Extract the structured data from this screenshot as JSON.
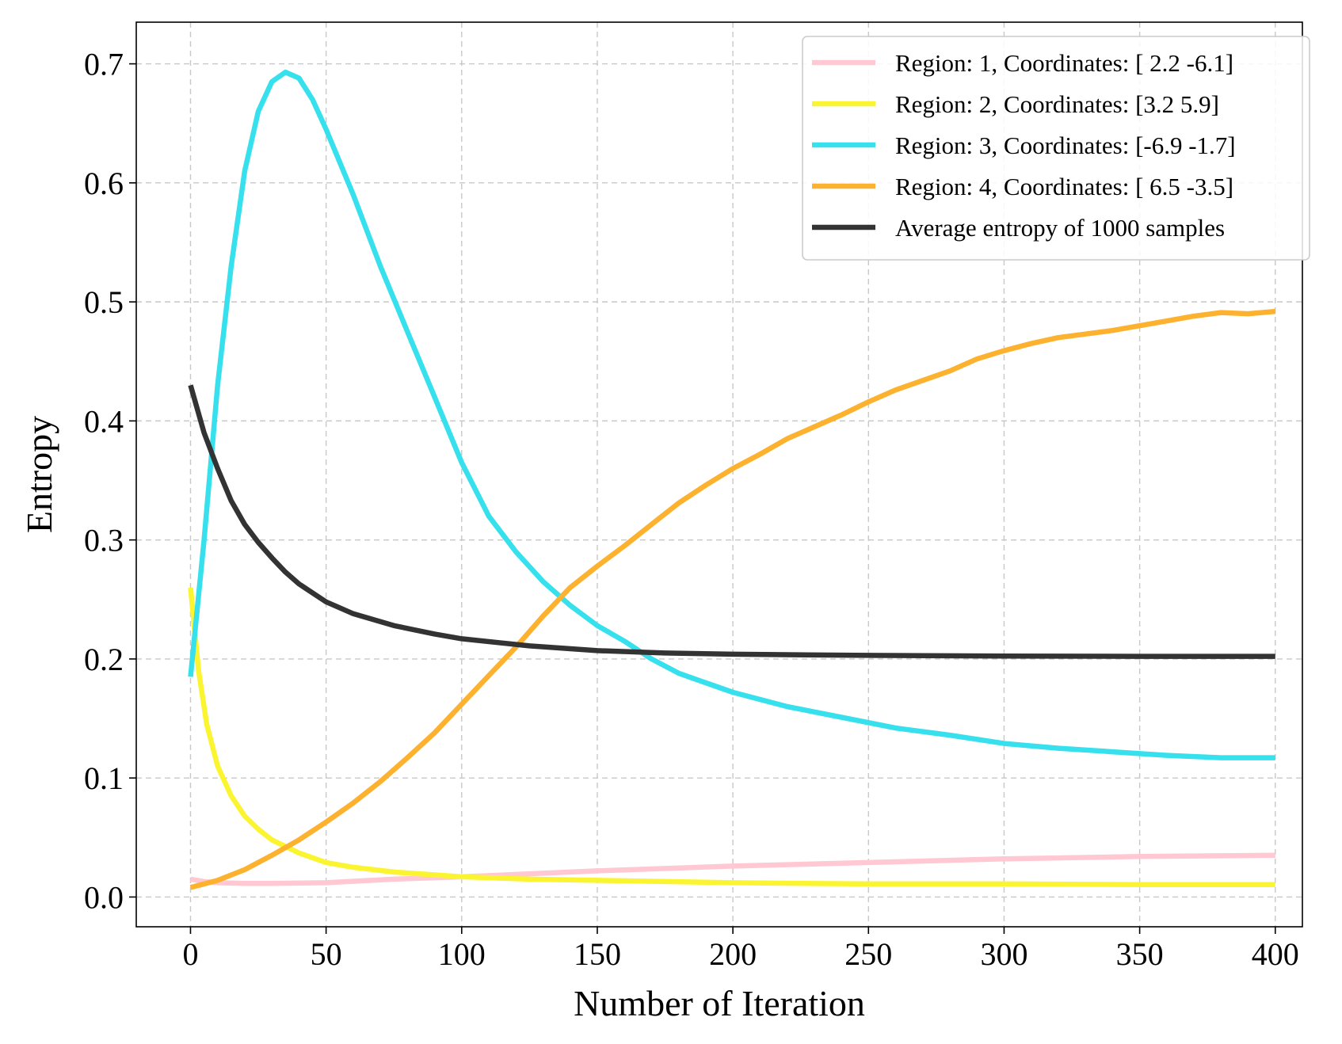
{
  "chart_data": {
    "type": "line",
    "title": "",
    "xlabel": "Number of Iteration",
    "ylabel": "Entropy",
    "xlim": [
      -20,
      410
    ],
    "ylim": [
      -0.025,
      0.735
    ],
    "xticks": [
      0,
      50,
      100,
      150,
      200,
      250,
      300,
      350,
      400
    ],
    "yticks": [
      0.0,
      0.1,
      0.2,
      0.3,
      0.4,
      0.5,
      0.6,
      0.7
    ],
    "xtick_labels": [
      "0",
      "50",
      "100",
      "150",
      "200",
      "250",
      "300",
      "350",
      "400"
    ],
    "ytick_labels": [
      "0.0",
      "0.1",
      "0.2",
      "0.3",
      "0.4",
      "0.5",
      "0.6",
      "0.7"
    ],
    "grid": true,
    "legend_position": "top-right",
    "series": [
      {
        "name": "Region: 1, Coordinates: [ 2.2 -6.1]",
        "color": "#ffc8d2",
        "points": [
          [
            0,
            0.015
          ],
          [
            5,
            0.013
          ],
          [
            10,
            0.012
          ],
          [
            20,
            0.0115
          ],
          [
            30,
            0.0115
          ],
          [
            50,
            0.012
          ],
          [
            75,
            0.015
          ],
          [
            100,
            0.017
          ],
          [
            150,
            0.022
          ],
          [
            200,
            0.026
          ],
          [
            250,
            0.029
          ],
          [
            300,
            0.032
          ],
          [
            350,
            0.034
          ],
          [
            400,
            0.035
          ]
        ]
      },
      {
        "name": "Region: 2, Coordinates: [3.2 5.9]",
        "color": "#fbf531",
        "points": [
          [
            0,
            0.26
          ],
          [
            3,
            0.19
          ],
          [
            6,
            0.145
          ],
          [
            10,
            0.11
          ],
          [
            15,
            0.085
          ],
          [
            20,
            0.068
          ],
          [
            25,
            0.057
          ],
          [
            30,
            0.048
          ],
          [
            40,
            0.037
          ],
          [
            50,
            0.029
          ],
          [
            60,
            0.025
          ],
          [
            75,
            0.021
          ],
          [
            100,
            0.017
          ],
          [
            125,
            0.015
          ],
          [
            150,
            0.014
          ],
          [
            200,
            0.012
          ],
          [
            250,
            0.011
          ],
          [
            300,
            0.011
          ],
          [
            350,
            0.0105
          ],
          [
            400,
            0.0105
          ]
        ]
      },
      {
        "name": "Region: 3, Coordinates: [-6.9 -1.7]",
        "color": "#36e0ec",
        "points": [
          [
            0,
            0.185
          ],
          [
            5,
            0.3
          ],
          [
            10,
            0.43
          ],
          [
            15,
            0.53
          ],
          [
            20,
            0.61
          ],
          [
            25,
            0.66
          ],
          [
            30,
            0.685
          ],
          [
            35,
            0.693
          ],
          [
            40,
            0.688
          ],
          [
            45,
            0.67
          ],
          [
            50,
            0.645
          ],
          [
            60,
            0.59
          ],
          [
            70,
            0.53
          ],
          [
            80,
            0.475
          ],
          [
            90,
            0.42
          ],
          [
            100,
            0.365
          ],
          [
            110,
            0.32
          ],
          [
            120,
            0.29
          ],
          [
            130,
            0.265
          ],
          [
            140,
            0.245
          ],
          [
            150,
            0.228
          ],
          [
            160,
            0.215
          ],
          [
            170,
            0.2
          ],
          [
            180,
            0.188
          ],
          [
            190,
            0.18
          ],
          [
            200,
            0.172
          ],
          [
            220,
            0.16
          ],
          [
            240,
            0.151
          ],
          [
            260,
            0.142
          ],
          [
            280,
            0.136
          ],
          [
            300,
            0.129
          ],
          [
            320,
            0.125
          ],
          [
            340,
            0.122
          ],
          [
            360,
            0.119
          ],
          [
            380,
            0.117
          ],
          [
            400,
            0.117
          ]
        ]
      },
      {
        "name": "Region: 4, Coordinates: [ 6.5 -3.5]",
        "color": "#fdb22f",
        "points": [
          [
            0,
            0.008
          ],
          [
            10,
            0.014
          ],
          [
            20,
            0.023
          ],
          [
            30,
            0.035
          ],
          [
            40,
            0.048
          ],
          [
            50,
            0.063
          ],
          [
            60,
            0.079
          ],
          [
            70,
            0.097
          ],
          [
            80,
            0.117
          ],
          [
            90,
            0.138
          ],
          [
            100,
            0.162
          ],
          [
            110,
            0.186
          ],
          [
            120,
            0.21
          ],
          [
            130,
            0.236
          ],
          [
            140,
            0.26
          ],
          [
            150,
            0.278
          ],
          [
            160,
            0.295
          ],
          [
            170,
            0.313
          ],
          [
            180,
            0.331
          ],
          [
            190,
            0.346
          ],
          [
            200,
            0.36
          ],
          [
            210,
            0.372
          ],
          [
            220,
            0.385
          ],
          [
            230,
            0.395
          ],
          [
            240,
            0.405
          ],
          [
            250,
            0.416
          ],
          [
            260,
            0.426
          ],
          [
            270,
            0.434
          ],
          [
            280,
            0.442
          ],
          [
            290,
            0.452
          ],
          [
            300,
            0.459
          ],
          [
            310,
            0.465
          ],
          [
            320,
            0.47
          ],
          [
            330,
            0.473
          ],
          [
            340,
            0.476
          ],
          [
            350,
            0.48
          ],
          [
            360,
            0.484
          ],
          [
            370,
            0.488
          ],
          [
            380,
            0.491
          ],
          [
            390,
            0.49
          ],
          [
            400,
            0.492
          ]
        ]
      },
      {
        "name": "Average entropy of 1000 samples",
        "color": "#333333",
        "points": [
          [
            0,
            0.43
          ],
          [
            5,
            0.39
          ],
          [
            10,
            0.36
          ],
          [
            15,
            0.333
          ],
          [
            20,
            0.313
          ],
          [
            25,
            0.298
          ],
          [
            30,
            0.285
          ],
          [
            35,
            0.273
          ],
          [
            40,
            0.263
          ],
          [
            50,
            0.248
          ],
          [
            60,
            0.238
          ],
          [
            75,
            0.228
          ],
          [
            90,
            0.221
          ],
          [
            100,
            0.217
          ],
          [
            125,
            0.211
          ],
          [
            150,
            0.207
          ],
          [
            175,
            0.205
          ],
          [
            200,
            0.204
          ],
          [
            250,
            0.203
          ],
          [
            300,
            0.2025
          ],
          [
            350,
            0.2022
          ],
          [
            400,
            0.2022
          ]
        ]
      }
    ]
  }
}
